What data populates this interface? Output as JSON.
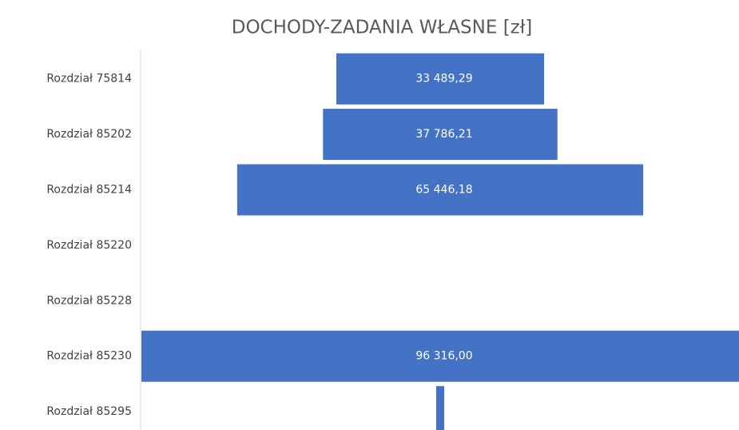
{
  "chart_data": {
    "type": "funnel",
    "title": "DOCHODY-ZADANIA WŁASNE [zł]",
    "categories": [
      "Rozdział 75814",
      "Rozdział 85202",
      "Rozdział 85214",
      "Rozdział 85220",
      "Rozdział 85228",
      "Rozdział 85230",
      "Rozdział 85295"
    ],
    "values": [
      33489.29,
      37786.21,
      65446.18,
      0,
      0,
      96316,
      1300
    ],
    "value_labels": [
      "33 489,29",
      "37 786,21",
      "65 446,18",
      null,
      null,
      "96 316,00",
      null
    ],
    "color": "#4472c4"
  }
}
